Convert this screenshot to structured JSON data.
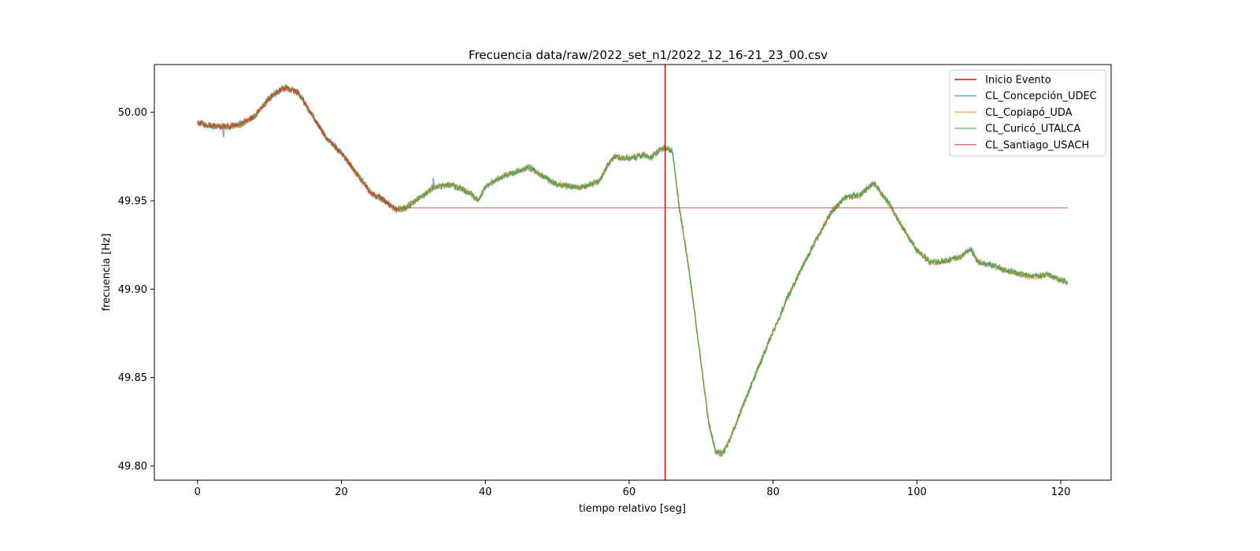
{
  "chart_data": {
    "type": "line",
    "title": "Frecuencia data/raw/2022_set_n1/2022_12_16-21_23_00.csv",
    "xlabel": "tiempo relativo [seg]",
    "ylabel": "frecuencia [Hz]",
    "xlim": [
      -6,
      127
    ],
    "ylim": [
      49.792,
      50.027
    ],
    "xticks": [
      0,
      20,
      40,
      60,
      80,
      100,
      120
    ],
    "yticks": [
      49.8,
      49.85,
      49.9,
      49.95,
      50.0
    ],
    "xtick_labels": [
      "0",
      "20",
      "40",
      "60",
      "80",
      "100",
      "120"
    ],
    "ytick_labels": [
      "49.80",
      "49.85",
      "49.90",
      "49.95",
      "50.00"
    ],
    "grid": false,
    "legend_position": "top-right",
    "event": {
      "name": "Inicio Evento",
      "x": 65,
      "color": "#ff0000"
    },
    "threshold": {
      "y": 49.946,
      "x_start": 28,
      "x_end": 121,
      "color": "#d62728"
    },
    "series": [
      {
        "name": "CL_Concepción_UDEC",
        "color": "#1f77b4"
      },
      {
        "name": "CL_Copiapó_UDA",
        "color": "#ff7f0e"
      },
      {
        "name": "CL_Curicó_UTALCA",
        "color": "#2ca02c"
      },
      {
        "name": "CL_Santiago_USACH",
        "color": "#d62728"
      }
    ],
    "trend_points": {
      "x": [
        0,
        2,
        4,
        6,
        8,
        10,
        12,
        14,
        16,
        18,
        20,
        22,
        24,
        26,
        27.5,
        29,
        31,
        33,
        35,
        36,
        38,
        39,
        40,
        42,
        44,
        46,
        48,
        50,
        52,
        54,
        56,
        57,
        58,
        60,
        62,
        63,
        64,
        65,
        66,
        66.5,
        67,
        68,
        69,
        70,
        71,
        72,
        73,
        74,
        76,
        78,
        80,
        82,
        84,
        86,
        88,
        90,
        92,
        94,
        96,
        98,
        100,
        102,
        104,
        106,
        107.5,
        108.5,
        110,
        112,
        114,
        116,
        118,
        120,
        121
      ],
      "y": [
        49.994,
        49.992,
        49.992,
        49.993,
        49.998,
        50.008,
        50.014,
        50.011,
        49.998,
        49.985,
        49.977,
        49.966,
        49.955,
        49.95,
        49.945,
        49.946,
        49.952,
        49.958,
        49.959,
        49.958,
        49.954,
        49.95,
        49.958,
        49.963,
        49.966,
        49.969,
        49.964,
        49.959,
        49.958,
        49.958,
        49.962,
        49.97,
        49.975,
        49.974,
        49.976,
        49.974,
        49.978,
        49.98,
        49.978,
        49.962,
        49.945,
        49.92,
        49.89,
        49.858,
        49.826,
        49.808,
        49.807,
        49.815,
        49.836,
        49.856,
        49.876,
        49.895,
        49.912,
        49.928,
        49.943,
        49.952,
        49.953,
        49.96,
        49.949,
        49.935,
        49.922,
        49.915,
        49.916,
        49.918,
        49.923,
        49.915,
        49.914,
        49.911,
        49.909,
        49.907,
        49.908,
        49.905,
        49.904
      ]
    }
  }
}
